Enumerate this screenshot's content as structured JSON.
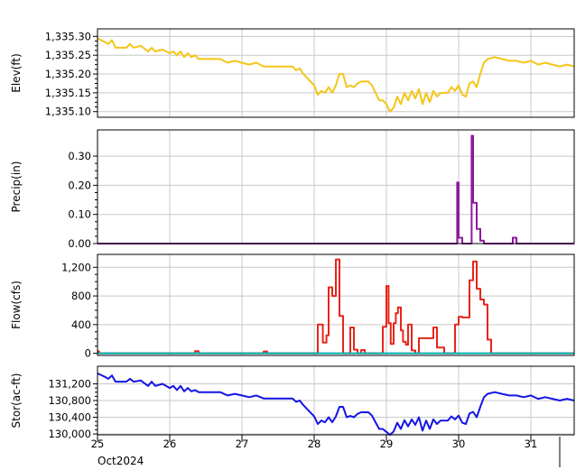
{
  "chart_data": {
    "type": "line",
    "x_axis": {
      "tick_labels": [
        "25",
        "26",
        "27",
        "28",
        "29",
        "30",
        "31"
      ],
      "date_label": "Oct2024",
      "xlim": [
        25,
        31.6
      ]
    },
    "panels": [
      {
        "key": "elev",
        "type": "line",
        "ylabel": "Elev(ft)",
        "ylim": [
          1335.085,
          1335.32
        ],
        "ticks": [
          1335.1,
          1335.15,
          1335.2,
          1335.25,
          1335.3
        ],
        "tick_labels": [
          "1,335.10",
          "1,335.15",
          "1,335.20",
          "1,335.25",
          "1,335.30"
        ],
        "series": [
          {
            "color": "#F5C518",
            "x": [
              25.0,
              25.1,
              25.15,
              25.2,
              25.25,
              25.3,
              25.4,
              25.45,
              25.5,
              25.6,
              25.7,
              25.75,
              25.8,
              25.9,
              26.0,
              26.05,
              26.1,
              26.15,
              26.2,
              26.25,
              26.3,
              26.35,
              26.4,
              26.5,
              26.6,
              26.7,
              26.8,
              26.9,
              27.0,
              27.1,
              27.2,
              27.3,
              27.5,
              27.6,
              27.7,
              27.75,
              27.8,
              27.85,
              27.9,
              28.0,
              28.05,
              28.1,
              28.15,
              28.2,
              28.25,
              28.3,
              28.35,
              28.4,
              28.45,
              28.5,
              28.55,
              28.6,
              28.65,
              28.7,
              28.75,
              28.8,
              28.85,
              28.9,
              28.95,
              29.0,
              29.05,
              29.1,
              29.15,
              29.2,
              29.25,
              29.3,
              29.35,
              29.4,
              29.45,
              29.5,
              29.55,
              29.6,
              29.65,
              29.7,
              29.75,
              29.8,
              29.85,
              29.9,
              29.95,
              30.0,
              30.05,
              30.1,
              30.15,
              30.2,
              30.25,
              30.3,
              30.35,
              30.4,
              30.5,
              30.6,
              30.7,
              30.8,
              30.9,
              31.0,
              31.1,
              31.2,
              31.3,
              31.4,
              31.5,
              31.6
            ],
            "y": [
              1335.295,
              1335.285,
              1335.28,
              1335.29,
              1335.27,
              1335.27,
              1335.27,
              1335.28,
              1335.27,
              1335.275,
              1335.26,
              1335.27,
              1335.26,
              1335.265,
              1335.255,
              1335.26,
              1335.25,
              1335.26,
              1335.245,
              1335.255,
              1335.245,
              1335.25,
              1335.24,
              1335.24,
              1335.24,
              1335.24,
              1335.23,
              1335.235,
              1335.23,
              1335.225,
              1335.23,
              1335.22,
              1335.22,
              1335.22,
              1335.22,
              1335.21,
              1335.215,
              1335.2,
              1335.19,
              1335.17,
              1335.145,
              1335.155,
              1335.15,
              1335.165,
              1335.15,
              1335.17,
              1335.2,
              1335.2,
              1335.165,
              1335.17,
              1335.165,
              1335.175,
              1335.18,
              1335.18,
              1335.18,
              1335.17,
              1335.15,
              1335.13,
              1335.13,
              1335.12,
              1335.1,
              1335.11,
              1335.14,
              1335.12,
              1335.15,
              1335.13,
              1335.155,
              1335.135,
              1335.16,
              1335.12,
              1335.15,
              1335.125,
              1335.155,
              1335.14,
              1335.15,
              1335.15,
              1335.15,
              1335.165,
              1335.155,
              1335.17,
              1335.145,
              1335.14,
              1335.175,
              1335.18,
              1335.165,
              1335.2,
              1335.23,
              1335.24,
              1335.245,
              1335.24,
              1335.235,
              1335.235,
              1335.23,
              1335.235,
              1335.225,
              1335.23,
              1335.225,
              1335.22,
              1335.225,
              1335.22
            ]
          }
        ]
      },
      {
        "key": "precip",
        "type": "step",
        "ylabel": "Precip(in)",
        "ylim": [
          0,
          0.39
        ],
        "ticks": [
          0.0,
          0.1,
          0.2,
          0.3
        ],
        "tick_labels": [
          "0.00",
          "0.10",
          "0.20",
          "0.30"
        ],
        "series": [
          {
            "color": "#8B1A9C",
            "x": [
              25.0,
              29.98,
              30.0,
              30.05,
              30.08,
              30.18,
              30.2,
              30.25,
              30.3,
              30.35,
              30.4,
              30.75,
              30.8,
              31.6
            ],
            "y": [
              0.0,
              0.21,
              0.02,
              0.0,
              0.0,
              0.37,
              0.14,
              0.05,
              0.01,
              0.0,
              0.0,
              0.02,
              0.0,
              0.0
            ]
          }
        ]
      },
      {
        "key": "flow",
        "type": "step",
        "ylabel": "Flow(cfs)",
        "ylim": [
          -30,
          1380
        ],
        "ticks": [
          0,
          400,
          800,
          1200
        ],
        "tick_labels": [
          "0",
          "400",
          "800",
          "1,200"
        ],
        "series": [
          {
            "color": "#E8241A",
            "x": [
              25.0,
              25.02,
              25.05,
              26.35,
              26.4,
              27.25,
              27.3,
              27.35,
              28.05,
              28.12,
              28.17,
              28.2,
              28.25,
              28.3,
              28.35,
              28.4,
              28.45,
              28.5,
              28.55,
              28.6,
              28.65,
              28.7,
              28.75,
              28.9,
              28.95,
              29.0,
              29.03,
              29.06,
              29.1,
              29.13,
              29.16,
              29.2,
              29.23,
              29.27,
              29.3,
              29.35,
              29.4,
              29.45,
              29.5,
              29.55,
              29.65,
              29.7,
              29.75,
              29.8,
              29.95,
              30.0,
              30.05,
              30.15,
              30.2,
              30.25,
              30.3,
              30.35,
              30.4,
              30.45,
              31.6
            ],
            "y": [
              30,
              0,
              0,
              30,
              0,
              0,
              25,
              0,
              400,
              150,
              250,
              920,
              800,
              1310,
              520,
              0,
              0,
              360,
              50,
              0,
              45,
              0,
              0,
              0,
              370,
              940,
              420,
              130,
              420,
              560,
              640,
              320,
              160,
              120,
              400,
              40,
              0,
              210,
              210,
              210,
              360,
              80,
              80,
              0,
              400,
              510,
              500,
              1020,
              1280,
              900,
              750,
              680,
              190,
              0,
              0
            ]
          },
          {
            "color": "#00B0B0",
            "x": [
              25.0,
              31.6
            ],
            "y": [
              0,
              0
            ]
          }
        ]
      },
      {
        "key": "stor",
        "type": "line",
        "ylabel": "Stor(ac-ft)",
        "ylim": [
          129980,
          131620
        ],
        "ticks": [
          130000,
          130400,
          130800,
          131200
        ],
        "tick_labels": [
          "130,000",
          "130,400",
          "130,800",
          "131,200"
        ],
        "series": [
          {
            "color": "#1414E6",
            "x": [
              25.0,
              25.1,
              25.15,
              25.2,
              25.25,
              25.3,
              25.4,
              25.45,
              25.5,
              25.6,
              25.7,
              25.75,
              25.8,
              25.9,
              26.0,
              26.05,
              26.1,
              26.15,
              26.2,
              26.25,
              26.3,
              26.35,
              26.4,
              26.5,
              26.6,
              26.7,
              26.8,
              26.9,
              27.0,
              27.1,
              27.2,
              27.3,
              27.5,
              27.6,
              27.7,
              27.75,
              27.8,
              27.85,
              27.9,
              28.0,
              28.05,
              28.1,
              28.15,
              28.2,
              28.25,
              28.3,
              28.35,
              28.4,
              28.45,
              28.5,
              28.55,
              28.6,
              28.65,
              28.7,
              28.75,
              28.8,
              28.85,
              28.9,
              28.95,
              29.0,
              29.05,
              29.1,
              29.15,
              29.2,
              29.25,
              29.3,
              29.35,
              29.4,
              29.45,
              29.5,
              29.55,
              29.6,
              29.65,
              29.7,
              29.75,
              29.8,
              29.85,
              29.9,
              29.95,
              30.0,
              30.05,
              30.1,
              30.15,
              30.2,
              30.25,
              30.3,
              30.35,
              30.4,
              30.5,
              30.6,
              30.7,
              30.8,
              30.9,
              31.0,
              31.1,
              31.2,
              31.3,
              31.4,
              31.5,
              31.6
            ],
            "y": [
              131450,
              131370,
              131320,
              131400,
              131250,
              131250,
              131250,
              131320,
              131250,
              131280,
              131150,
              131250,
              131150,
              131200,
              131100,
              131150,
              131050,
              131150,
              131020,
              131100,
              131020,
              131050,
              131000,
              131000,
              131000,
              131000,
              130920,
              130960,
              130920,
              130880,
              130920,
              130850,
              130850,
              130850,
              130850,
              130770,
              130800,
              130690,
              130600,
              130420,
              130240,
              130320,
              130280,
              130400,
              130280,
              130420,
              130650,
              130650,
              130400,
              130430,
              130400,
              130480,
              130520,
              130520,
              130520,
              130440,
              130280,
              130120,
              130120,
              130050,
              129980,
              130060,
              130270,
              130120,
              130330,
              130180,
              130350,
              130220,
              130400,
              130080,
              130320,
              130120,
              130350,
              130240,
              130320,
              130320,
              130320,
              130420,
              130350,
              130440,
              130270,
              130240,
              130490,
              130530,
              130400,
              130650,
              130880,
              130960,
              131000,
              130960,
              130920,
              130920,
              130880,
              130920,
              130840,
              130880,
              130840,
              130800,
              130840,
              130800
            ]
          }
        ]
      }
    ]
  }
}
